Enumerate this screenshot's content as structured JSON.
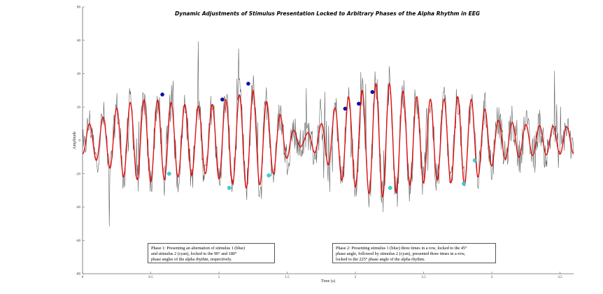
{
  "chart_data": {
    "type": "line",
    "title": "Dynamic Adjustments of Stimulus Presentation Locked to Arbitrary Phases of the Alpha Rhythm in EEG",
    "xlabel": "Time (s)",
    "ylabel": "Amplitude",
    "xlim": [
      0,
      3.6
    ],
    "ylim": [
      -80,
      80
    ],
    "x_ticks": [
      0,
      0.5,
      1,
      1.5,
      2,
      2.5,
      3,
      3.5
    ],
    "x_tick_labels": [
      "0",
      "0.5",
      "1",
      "1.5",
      "2",
      "2.5",
      "3",
      "3.5"
    ],
    "y_ticks": [
      -80,
      -60,
      -40,
      -20,
      0,
      20,
      40,
      60,
      80
    ],
    "y_tick_labels": [
      "-80",
      "-60",
      "-40",
      "-20",
      "0",
      "20",
      "40",
      "60",
      "80"
    ],
    "grid": false,
    "series": [
      {
        "kind": "raw-eeg",
        "color": "#555555",
        "noise_amplitude": 18,
        "samples": 900
      },
      {
        "kind": "alpha-rhythm",
        "color": "#dd1111",
        "frequency_hz": 10,
        "envelope": [
          [
            0.0,
            8
          ],
          [
            0.15,
            14
          ],
          [
            0.3,
            22
          ],
          [
            0.5,
            25
          ],
          [
            0.7,
            22
          ],
          [
            0.9,
            20
          ],
          [
            1.1,
            26
          ],
          [
            1.25,
            30
          ],
          [
            1.4,
            20
          ],
          [
            1.55,
            6
          ],
          [
            1.62,
            3
          ],
          [
            1.75,
            10
          ],
          [
            1.9,
            24
          ],
          [
            2.05,
            30
          ],
          [
            2.15,
            34
          ],
          [
            2.25,
            34
          ],
          [
            2.4,
            27
          ],
          [
            2.6,
            24
          ],
          [
            2.8,
            27
          ],
          [
            2.9,
            22
          ],
          [
            3.05,
            12
          ],
          [
            3.3,
            9
          ],
          [
            3.6,
            8
          ]
        ]
      }
    ],
    "markers": [
      {
        "stimulus": 1,
        "color": "#1010b0",
        "x": 0.585,
        "y": 27.5
      },
      {
        "stimulus": 2,
        "color": "#33d4dd",
        "x": 0.635,
        "y": -20
      },
      {
        "stimulus": 1,
        "color": "#1010b0",
        "x": 1.025,
        "y": 24.5
      },
      {
        "stimulus": 2,
        "color": "#33d4dd",
        "x": 1.075,
        "y": -28.5
      },
      {
        "stimulus": 1,
        "color": "#1010b0",
        "x": 1.215,
        "y": 34
      },
      {
        "stimulus": 2,
        "color": "#33d4dd",
        "x": 1.365,
        "y": -21
      },
      {
        "stimulus": 1,
        "color": "#1010b0",
        "x": 1.925,
        "y": 19
      },
      {
        "stimulus": 1,
        "color": "#1010b0",
        "x": 2.025,
        "y": 22
      },
      {
        "stimulus": 1,
        "color": "#1010b0",
        "x": 2.125,
        "y": 29
      },
      {
        "stimulus": 2,
        "color": "#33d4dd",
        "x": 2.255,
        "y": -28.5
      },
      {
        "stimulus": 2,
        "color": "#33d4dd",
        "x": 2.795,
        "y": -26
      },
      {
        "stimulus": 2,
        "color": "#33d4dd",
        "x": 2.875,
        "y": -12
      }
    ],
    "annotations": [
      {
        "id": "phase-1",
        "text": "Phase 1: Presenting an alternation of stimulus 1 (blue)\nand stimulus 2 (cyan), locked to the 90° and 180°\nphase angles of the alpha rhythm, respectively."
      },
      {
        "id": "phase-2",
        "text": "Phase 2: Presenting stimulus 1 (blue) three times in a row, locked to the 45°\nphase angle, followed by stimulus 2 (cyan), presented three times in a row,\nlocked to the 225° phase angle of the alpha rhythm."
      }
    ]
  }
}
